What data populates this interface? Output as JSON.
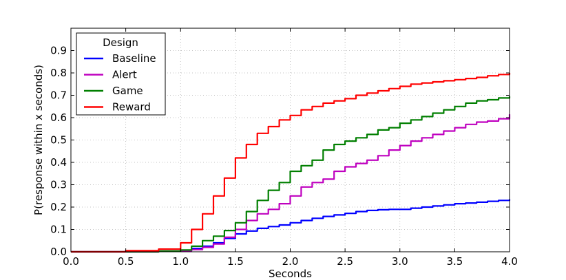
{
  "chart_data": {
    "type": "line",
    "title": "",
    "xlabel": "Seconds",
    "ylabel": "P(response within x seconds)",
    "xlim": [
      0.0,
      4.0
    ],
    "ylim": [
      0.0,
      1.0
    ],
    "xticks": [
      0.0,
      0.5,
      1.0,
      1.5,
      2.0,
      2.5,
      3.0,
      3.5,
      4.0
    ],
    "xtick_labels": [
      "0.0",
      "0.5",
      "1.0",
      "1.5",
      "2.0",
      "2.5",
      "3.0",
      "3.5",
      "4.0"
    ],
    "yticks": [
      0.0,
      0.1,
      0.2,
      0.3,
      0.4,
      0.5,
      0.6,
      0.7,
      0.8,
      0.9
    ],
    "ytick_labels": [
      "0.0",
      "0.1",
      "0.2",
      "0.3",
      "0.4",
      "0.5",
      "0.6",
      "0.7",
      "0.8",
      "0.9"
    ],
    "grid": true,
    "legend": {
      "title": "Design",
      "placement": "top-left"
    },
    "series": [
      {
        "name": "Baseline",
        "color": "#0000ff",
        "x": [
          0.0,
          0.5,
          0.8,
          1.0,
          1.1,
          1.2,
          1.3,
          1.4,
          1.5,
          1.6,
          1.7,
          1.8,
          1.9,
          2.0,
          2.1,
          2.2,
          2.3,
          2.4,
          2.5,
          2.6,
          2.7,
          2.8,
          2.9,
          3.0,
          3.1,
          3.2,
          3.3,
          3.4,
          3.5,
          3.6,
          3.7,
          3.8,
          3.9,
          4.0
        ],
        "values": [
          0.0,
          0.0,
          0.003,
          0.005,
          0.015,
          0.025,
          0.04,
          0.06,
          0.08,
          0.093,
          0.105,
          0.113,
          0.12,
          0.13,
          0.14,
          0.15,
          0.158,
          0.165,
          0.172,
          0.18,
          0.185,
          0.188,
          0.19,
          0.19,
          0.195,
          0.2,
          0.205,
          0.21,
          0.215,
          0.218,
          0.222,
          0.226,
          0.23,
          0.235
        ]
      },
      {
        "name": "Alert",
        "color": "#bf00bf",
        "x": [
          0.0,
          0.5,
          0.8,
          1.0,
          1.1,
          1.2,
          1.3,
          1.4,
          1.5,
          1.6,
          1.7,
          1.8,
          1.9,
          2.0,
          2.1,
          2.2,
          2.3,
          2.4,
          2.5,
          2.6,
          2.7,
          2.8,
          2.9,
          3.0,
          3.1,
          3.2,
          3.3,
          3.4,
          3.5,
          3.6,
          3.7,
          3.8,
          3.9,
          4.0
        ],
        "values": [
          0.0,
          0.0,
          0.002,
          0.005,
          0.01,
          0.02,
          0.035,
          0.065,
          0.1,
          0.14,
          0.17,
          0.19,
          0.215,
          0.25,
          0.29,
          0.31,
          0.325,
          0.36,
          0.38,
          0.395,
          0.41,
          0.43,
          0.455,
          0.475,
          0.495,
          0.51,
          0.525,
          0.54,
          0.555,
          0.57,
          0.58,
          0.585,
          0.595,
          0.615
        ]
      },
      {
        "name": "Game",
        "color": "#007f00",
        "x": [
          0.0,
          0.5,
          0.8,
          1.0,
          1.1,
          1.2,
          1.3,
          1.4,
          1.5,
          1.6,
          1.7,
          1.8,
          1.9,
          2.0,
          2.1,
          2.2,
          2.3,
          2.4,
          2.5,
          2.6,
          2.7,
          2.8,
          2.9,
          3.0,
          3.1,
          3.2,
          3.3,
          3.4,
          3.5,
          3.6,
          3.7,
          3.8,
          3.9,
          4.0
        ],
        "values": [
          0.0,
          0.0,
          0.003,
          0.008,
          0.025,
          0.05,
          0.07,
          0.095,
          0.13,
          0.18,
          0.23,
          0.275,
          0.31,
          0.36,
          0.385,
          0.41,
          0.455,
          0.48,
          0.495,
          0.51,
          0.525,
          0.545,
          0.555,
          0.575,
          0.59,
          0.605,
          0.62,
          0.635,
          0.65,
          0.665,
          0.675,
          0.68,
          0.688,
          0.695
        ]
      },
      {
        "name": "Reward",
        "color": "#ff0000",
        "x": [
          0.0,
          0.5,
          0.8,
          1.0,
          1.1,
          1.2,
          1.3,
          1.4,
          1.5,
          1.6,
          1.7,
          1.8,
          1.9,
          2.0,
          2.1,
          2.2,
          2.3,
          2.4,
          2.5,
          2.6,
          2.7,
          2.8,
          2.9,
          3.0,
          3.1,
          3.2,
          3.3,
          3.4,
          3.5,
          3.6,
          3.7,
          3.8,
          3.9,
          4.0
        ],
        "values": [
          0.0,
          0.005,
          0.012,
          0.04,
          0.1,
          0.17,
          0.25,
          0.33,
          0.42,
          0.48,
          0.53,
          0.56,
          0.59,
          0.61,
          0.635,
          0.65,
          0.665,
          0.675,
          0.685,
          0.7,
          0.71,
          0.72,
          0.73,
          0.74,
          0.75,
          0.755,
          0.76,
          0.765,
          0.77,
          0.775,
          0.78,
          0.787,
          0.793,
          0.8
        ]
      }
    ]
  }
}
